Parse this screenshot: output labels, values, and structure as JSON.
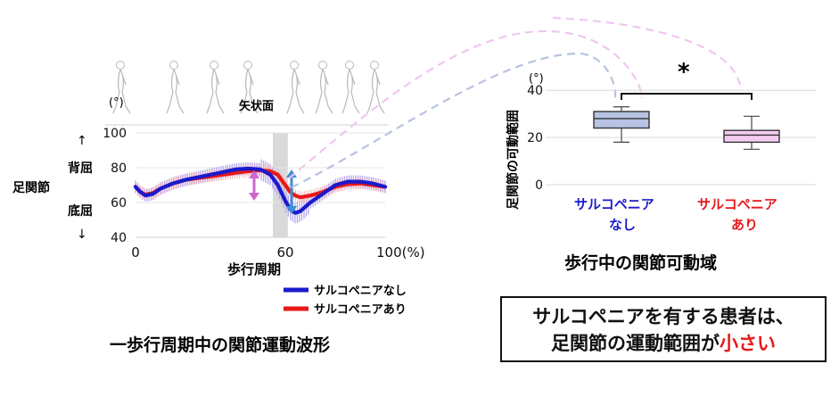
{
  "left_chart": {
    "sagittal_label": "矢状面",
    "y_unit": "(°)",
    "y_ticks": [
      100,
      80,
      60,
      40
    ],
    "x_ticks": [
      "0",
      "60",
      "100(%)"
    ],
    "joint_label": "足関節",
    "dorsiflexion_label": "背屈",
    "plantarflexion_label": "底屈",
    "up_arrow": "↑",
    "down_arrow": "↓",
    "xlabel": "歩行周期",
    "caption": "一歩行周期中の関節運動波形",
    "legend": [
      {
        "label": "サルコペニアなし",
        "color": "#1a1acc"
      },
      {
        "label": "サルコペニアあり",
        "color": "#e81818"
      }
    ]
  },
  "right_chart": {
    "ylabel": "足関節の可動範囲",
    "y_unit": "(°)",
    "y_ticks": [
      40,
      20,
      0
    ],
    "significance": "*",
    "cat1_line1": "サルコペニア",
    "cat1_line2": "なし",
    "cat2_line1": "サルコペニア",
    "cat2_line2": "あり",
    "cat1_color": "#1a1acc",
    "cat2_color": "#e81818",
    "caption": "歩行中の関節可動域"
  },
  "conclusion": {
    "line1": "サルコペニアを有する患者は、",
    "line2_prefix": "足関節の運動範囲が",
    "line2_highlight": "小さい",
    "highlight_color": "#e81818"
  },
  "chart_data": [
    {
      "type": "line",
      "ylim": [
        40,
        100
      ],
      "xlim": [
        0,
        100
      ],
      "x": [
        0,
        2,
        4,
        7,
        10,
        15,
        20,
        25,
        30,
        35,
        40,
        45,
        50,
        54,
        57,
        60,
        62,
        64,
        66,
        70,
        75,
        80,
        85,
        90,
        95,
        100
      ],
      "series": [
        {
          "name": "サルコペニアなし",
          "color": "#1a1acc",
          "values": [
            69,
            66,
            64,
            65,
            68,
            71,
            73,
            74.5,
            76,
            77.5,
            79,
            79.5,
            79,
            76,
            70,
            61,
            56,
            54,
            55,
            60,
            65,
            70,
            72,
            72,
            71,
            69
          ]
        },
        {
          "name": "サルコペニアあり",
          "color": "#e81818",
          "values": [
            69,
            66,
            64.5,
            65.5,
            68,
            71,
            73,
            74,
            75,
            76,
            77,
            78,
            78.5,
            78,
            76,
            70,
            66,
            64,
            63,
            64,
            66,
            69,
            70.5,
            71,
            70,
            69
          ]
        }
      ],
      "shaded_region_x": [
        55,
        61
      ]
    },
    {
      "type": "box",
      "ylim": [
        0,
        45
      ],
      "categories": [
        "サルコペニアなし",
        "サルコペニアあり"
      ],
      "boxes": [
        {
          "min": 18,
          "q1": 24,
          "median": 28,
          "q3": 31,
          "max": 33,
          "fill": "#b7c3e3"
        },
        {
          "min": 15,
          "q1": 18,
          "median": 21,
          "q3": 23,
          "max": 29,
          "fill": "#f3cdf0"
        }
      ],
      "significance": "*"
    }
  ]
}
